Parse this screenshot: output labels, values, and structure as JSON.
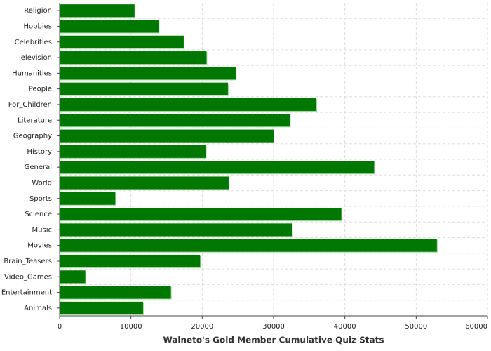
{
  "chart_data": {
    "type": "hbar",
    "title": "Walneto's Gold Member Cumulative Quiz Stats",
    "categories": [
      "Religion",
      "Hobbies",
      "Celebrities",
      "Television",
      "Humanities",
      "People",
      "For_Children",
      "Literature",
      "Geography",
      "History",
      "General",
      "World",
      "Sports",
      "Science",
      "Music",
      "Movies",
      "Brain_Teasers",
      "Video_Games",
      "Entertainment",
      "Animals"
    ],
    "values": [
      10500,
      13900,
      17400,
      20600,
      24700,
      23600,
      36000,
      32300,
      30000,
      20500,
      44100,
      23700,
      7800,
      39500,
      32600,
      52900,
      19700,
      3600,
      15600,
      11700
    ],
    "color": "#007700",
    "xlim": [
      0,
      60000
    ],
    "xticks": [
      0,
      10000,
      20000,
      30000,
      40000,
      50000,
      60000
    ],
    "grid": true
  }
}
